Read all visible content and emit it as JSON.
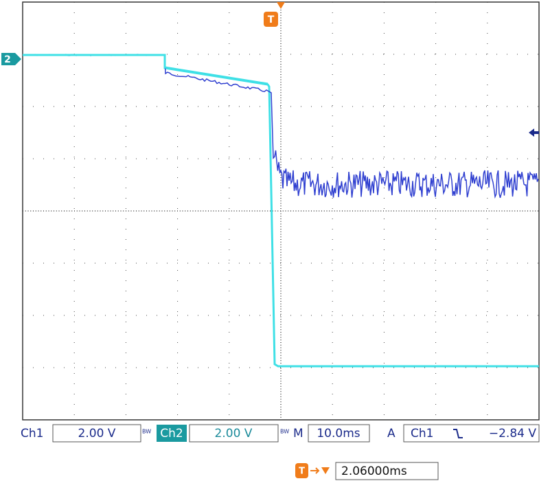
{
  "screen": {
    "markers": {
      "channel_2": "2",
      "trigger": "T"
    },
    "status_bar": {
      "ch1_label": "Ch1",
      "ch1_scale": "2.00 V",
      "ch1_bw": "BW",
      "ch2_label": "Ch2",
      "ch2_scale": "2.00 V",
      "ch2_bw": "BW",
      "timebase_label": "M",
      "timebase": "10.0ms",
      "trigger_mode": "A",
      "trigger_source": "Ch1",
      "trigger_level": "−2.84 V"
    },
    "trigger_position": {
      "icon": "T",
      "value": "2.06000ms"
    }
  }
}
